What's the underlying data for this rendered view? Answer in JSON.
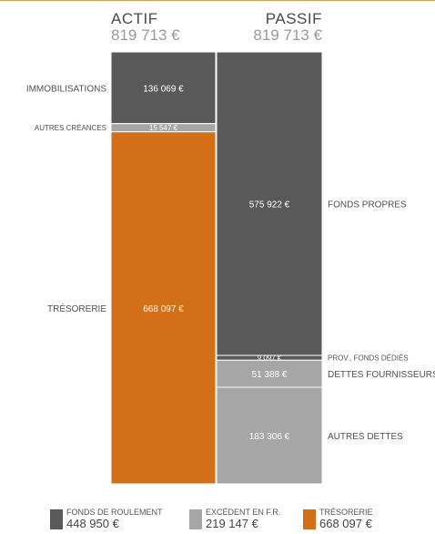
{
  "chart_data": {
    "type": "bar",
    "stacked": true,
    "columns": [
      {
        "name": "ACTIF",
        "total": "819 713 €",
        "segments": [
          {
            "label": "IMMOBILISATIONS",
            "value": 136069,
            "value_label": "136 069 €",
            "color": "#595959"
          },
          {
            "label": "AUTRES CRÉANCES",
            "value": 15547,
            "value_label": "15 547 €",
            "color": "#a6a6a6"
          },
          {
            "label": "TRÉSORERIE",
            "value": 668097,
            "value_label": "668 097 €",
            "color": "#d26f17"
          }
        ]
      },
      {
        "name": "PASSIF",
        "total": "819 713 €",
        "segments": [
          {
            "label": "FONDS PROPRES",
            "value": 575922,
            "value_label": "575 922 €",
            "color": "#595959"
          },
          {
            "label": "PROV., FONDS DÉDIÉS",
            "value": 9097,
            "value_label": "9 097 €",
            "color": "#595959"
          },
          {
            "label": "DETTES FOURNISSEURS",
            "value": 51388,
            "value_label": "51 388 €",
            "color": "#a6a6a6"
          },
          {
            "label": "AUTRES DETTES",
            "value": 183306,
            "value_label": "183 306 €",
            "color": "#a6a6a6"
          }
        ]
      }
    ],
    "legend": [
      {
        "label": "FONDS DE ROULEMENT",
        "value": "448 950 €",
        "color": "#595959"
      },
      {
        "label": "EXCÉDENT EN F.R.",
        "value": "219 147 €",
        "color": "#a6a6a6"
      },
      {
        "label": "TRÉSORERIE",
        "value": "668 097 €",
        "color": "#d26f17"
      }
    ]
  }
}
